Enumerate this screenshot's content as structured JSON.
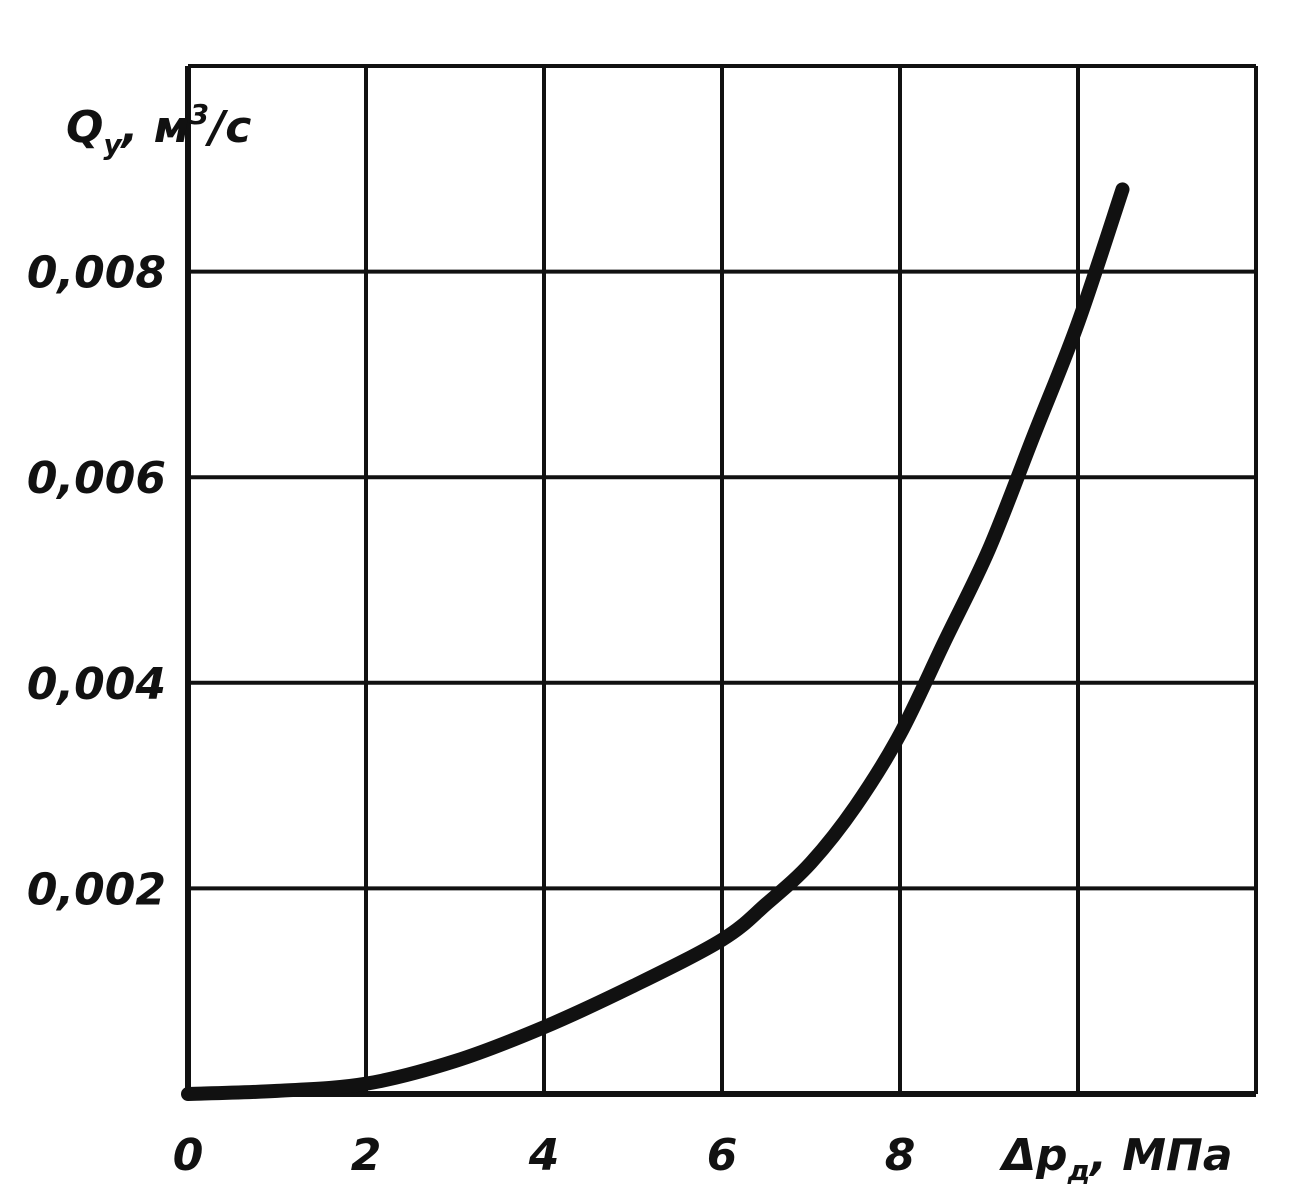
{
  "chart_data": {
    "type": "line",
    "xlabel": "Δp",
    "xlabel_sub": "д",
    "xlabel_unit": ", МПа",
    "ylabel": "Q",
    "ylabel_sub": "y",
    "ylabel_unit_pre": ", м",
    "ylabel_unit_sup": "3",
    "ylabel_unit_post": "/c",
    "xlim": [
      0,
      12
    ],
    "ylim": [
      0,
      0.01
    ],
    "x_ticks": [
      0,
      2,
      4,
      6,
      8
    ],
    "x_tick_labels": [
      "0",
      "2",
      "4",
      "6",
      "8"
    ],
    "y_ticks": [
      0.002,
      0.004,
      0.006,
      0.008
    ],
    "y_tick_labels": [
      "0,002",
      "0,004",
      "0,006",
      "0,008"
    ],
    "grid": true,
    "series": [
      {
        "x": [
          0,
          1,
          2,
          3,
          4,
          5,
          6,
          6.5,
          7,
          7.5,
          8,
          8.5,
          9,
          9.5,
          10,
          10.5
        ],
        "y": [
          0,
          3e-05,
          0.0001,
          0.00032,
          0.00065,
          0.00105,
          0.0015,
          0.00185,
          0.00225,
          0.0028,
          0.0035,
          0.0044,
          0.0053,
          0.0064,
          0.0075,
          0.0088
        ]
      }
    ]
  },
  "colors": {
    "line": "#111111",
    "grid": "#111111",
    "background": "#ffffff"
  }
}
